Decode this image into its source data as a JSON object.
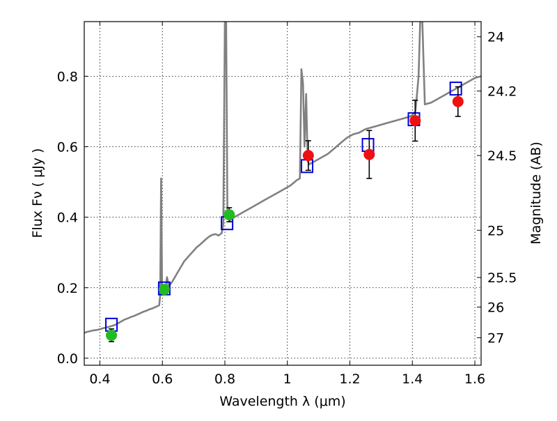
{
  "chart_data": {
    "type": "scatter",
    "xlabel": "Wavelength  λ (μm)",
    "ylabel": "Flux  Fν  ( μJy )",
    "y2label": "Magnitude (AB)",
    "xlim": [
      0.35,
      1.62
    ],
    "ylim": [
      -0.02,
      0.955
    ],
    "xticks": [
      0.4,
      0.6,
      0.8,
      1.0,
      1.2,
      1.4,
      1.6
    ],
    "xtick_labels": [
      "0.4",
      "0.6",
      "0.8",
      "1",
      "1.2",
      "1.4",
      "1.6"
    ],
    "yticks": [
      0.0,
      0.2,
      0.4,
      0.6,
      0.8
    ],
    "ytick_labels": [
      "0.0",
      "0.2",
      "0.4",
      "0.6",
      "0.8"
    ],
    "mag_ticks": [
      {
        "label": "24",
        "flux": 0.912
      },
      {
        "label": "24.2",
        "flux": 0.758
      },
      {
        "label": "24.5",
        "flux": 0.575
      },
      {
        "label": "25",
        "flux": 0.363
      },
      {
        "label": "25.5",
        "flux": 0.229
      },
      {
        "label": "26",
        "flux": 0.145
      },
      {
        "label": "27",
        "flux": 0.058
      }
    ],
    "grid": true,
    "colors": {
      "spectrum": "#808080",
      "model_box": "#0000dd",
      "obs_green": "#22bb22",
      "obs_red": "#ee1111",
      "errorbar": "#000000"
    },
    "spectrum": [
      [
        0.35,
        0.072
      ],
      [
        0.36,
        0.075
      ],
      [
        0.37,
        0.077
      ],
      [
        0.38,
        0.079
      ],
      [
        0.39,
        0.08
      ],
      [
        0.4,
        0.082
      ],
      [
        0.41,
        0.085
      ],
      [
        0.42,
        0.087
      ],
      [
        0.43,
        0.089
      ],
      [
        0.44,
        0.092
      ],
      [
        0.45,
        0.095
      ],
      [
        0.46,
        0.1
      ],
      [
        0.47,
        0.105
      ],
      [
        0.48,
        0.11
      ],
      [
        0.49,
        0.113
      ],
      [
        0.5,
        0.117
      ],
      [
        0.51,
        0.12
      ],
      [
        0.52,
        0.124
      ],
      [
        0.53,
        0.128
      ],
      [
        0.54,
        0.132
      ],
      [
        0.55,
        0.135
      ],
      [
        0.56,
        0.139
      ],
      [
        0.57,
        0.142
      ],
      [
        0.58,
        0.146
      ],
      [
        0.59,
        0.15
      ],
      [
        0.593,
        0.18
      ],
      [
        0.596,
        0.51
      ],
      [
        0.599,
        0.2
      ],
      [
        0.6,
        0.19
      ],
      [
        0.61,
        0.2
      ],
      [
        0.615,
        0.23
      ],
      [
        0.62,
        0.205
      ],
      [
        0.63,
        0.215
      ],
      [
        0.64,
        0.23
      ],
      [
        0.65,
        0.245
      ],
      [
        0.66,
        0.26
      ],
      [
        0.67,
        0.275
      ],
      [
        0.68,
        0.285
      ],
      [
        0.69,
        0.295
      ],
      [
        0.7,
        0.305
      ],
      [
        0.71,
        0.315
      ],
      [
        0.72,
        0.322
      ],
      [
        0.73,
        0.33
      ],
      [
        0.74,
        0.338
      ],
      [
        0.75,
        0.345
      ],
      [
        0.76,
        0.35
      ],
      [
        0.77,
        0.352
      ],
      [
        0.78,
        0.348
      ],
      [
        0.79,
        0.355
      ],
      [
        0.795,
        0.38
      ],
      [
        0.8,
        0.955
      ],
      [
        0.804,
        0.955
      ],
      [
        0.808,
        0.42
      ],
      [
        0.815,
        0.39
      ],
      [
        0.83,
        0.4
      ],
      [
        0.85,
        0.41
      ],
      [
        0.87,
        0.42
      ],
      [
        0.89,
        0.43
      ],
      [
        0.91,
        0.44
      ],
      [
        0.93,
        0.45
      ],
      [
        0.95,
        0.46
      ],
      [
        0.97,
        0.47
      ],
      [
        0.99,
        0.48
      ],
      [
        1.01,
        0.49
      ],
      [
        1.03,
        0.505
      ],
      [
        1.04,
        0.51
      ],
      [
        1.045,
        0.82
      ],
      [
        1.05,
        0.78
      ],
      [
        1.055,
        0.6
      ],
      [
        1.06,
        0.75
      ],
      [
        1.065,
        0.56
      ],
      [
        1.07,
        0.55
      ],
      [
        1.09,
        0.56
      ],
      [
        1.11,
        0.57
      ],
      [
        1.13,
        0.58
      ],
      [
        1.15,
        0.595
      ],
      [
        1.17,
        0.61
      ],
      [
        1.19,
        0.625
      ],
      [
        1.21,
        0.635
      ],
      [
        1.23,
        0.64
      ],
      [
        1.25,
        0.65
      ],
      [
        1.27,
        0.655
      ],
      [
        1.29,
        0.66
      ],
      [
        1.31,
        0.665
      ],
      [
        1.33,
        0.67
      ],
      [
        1.35,
        0.675
      ],
      [
        1.37,
        0.68
      ],
      [
        1.39,
        0.685
      ],
      [
        1.4,
        0.69
      ],
      [
        1.41,
        0.7
      ],
      [
        1.42,
        0.8
      ],
      [
        1.425,
        0.955
      ],
      [
        1.432,
        0.955
      ],
      [
        1.44,
        0.72
      ],
      [
        1.46,
        0.725
      ],
      [
        1.48,
        0.735
      ],
      [
        1.5,
        0.745
      ],
      [
        1.52,
        0.755
      ],
      [
        1.54,
        0.765
      ],
      [
        1.56,
        0.775
      ],
      [
        1.58,
        0.785
      ],
      [
        1.6,
        0.795
      ],
      [
        1.62,
        0.8
      ]
    ],
    "model_points": [
      {
        "x": 0.437,
        "y": 0.095
      },
      {
        "x": 0.606,
        "y": 0.198
      },
      {
        "x": 0.807,
        "y": 0.383
      },
      {
        "x": 1.063,
        "y": 0.545
      },
      {
        "x": 1.258,
        "y": 0.605
      },
      {
        "x": 1.405,
        "y": 0.678
      },
      {
        "x": 1.539,
        "y": 0.765
      }
    ],
    "observed": [
      {
        "x": 0.437,
        "y": 0.065,
        "err": 0.018,
        "color": "green"
      },
      {
        "x": 0.606,
        "y": 0.195,
        "err": 0.013,
        "color": "green"
      },
      {
        "x": 0.814,
        "y": 0.407,
        "err": 0.02,
        "color": "green"
      },
      {
        "x": 1.067,
        "y": 0.575,
        "err": 0.042,
        "color": "red"
      },
      {
        "x": 1.262,
        "y": 0.578,
        "err": 0.068,
        "color": "red"
      },
      {
        "x": 1.409,
        "y": 0.674,
        "err": 0.058,
        "color": "red"
      },
      {
        "x": 1.546,
        "y": 0.728,
        "err": 0.042,
        "color": "red"
      }
    ]
  }
}
